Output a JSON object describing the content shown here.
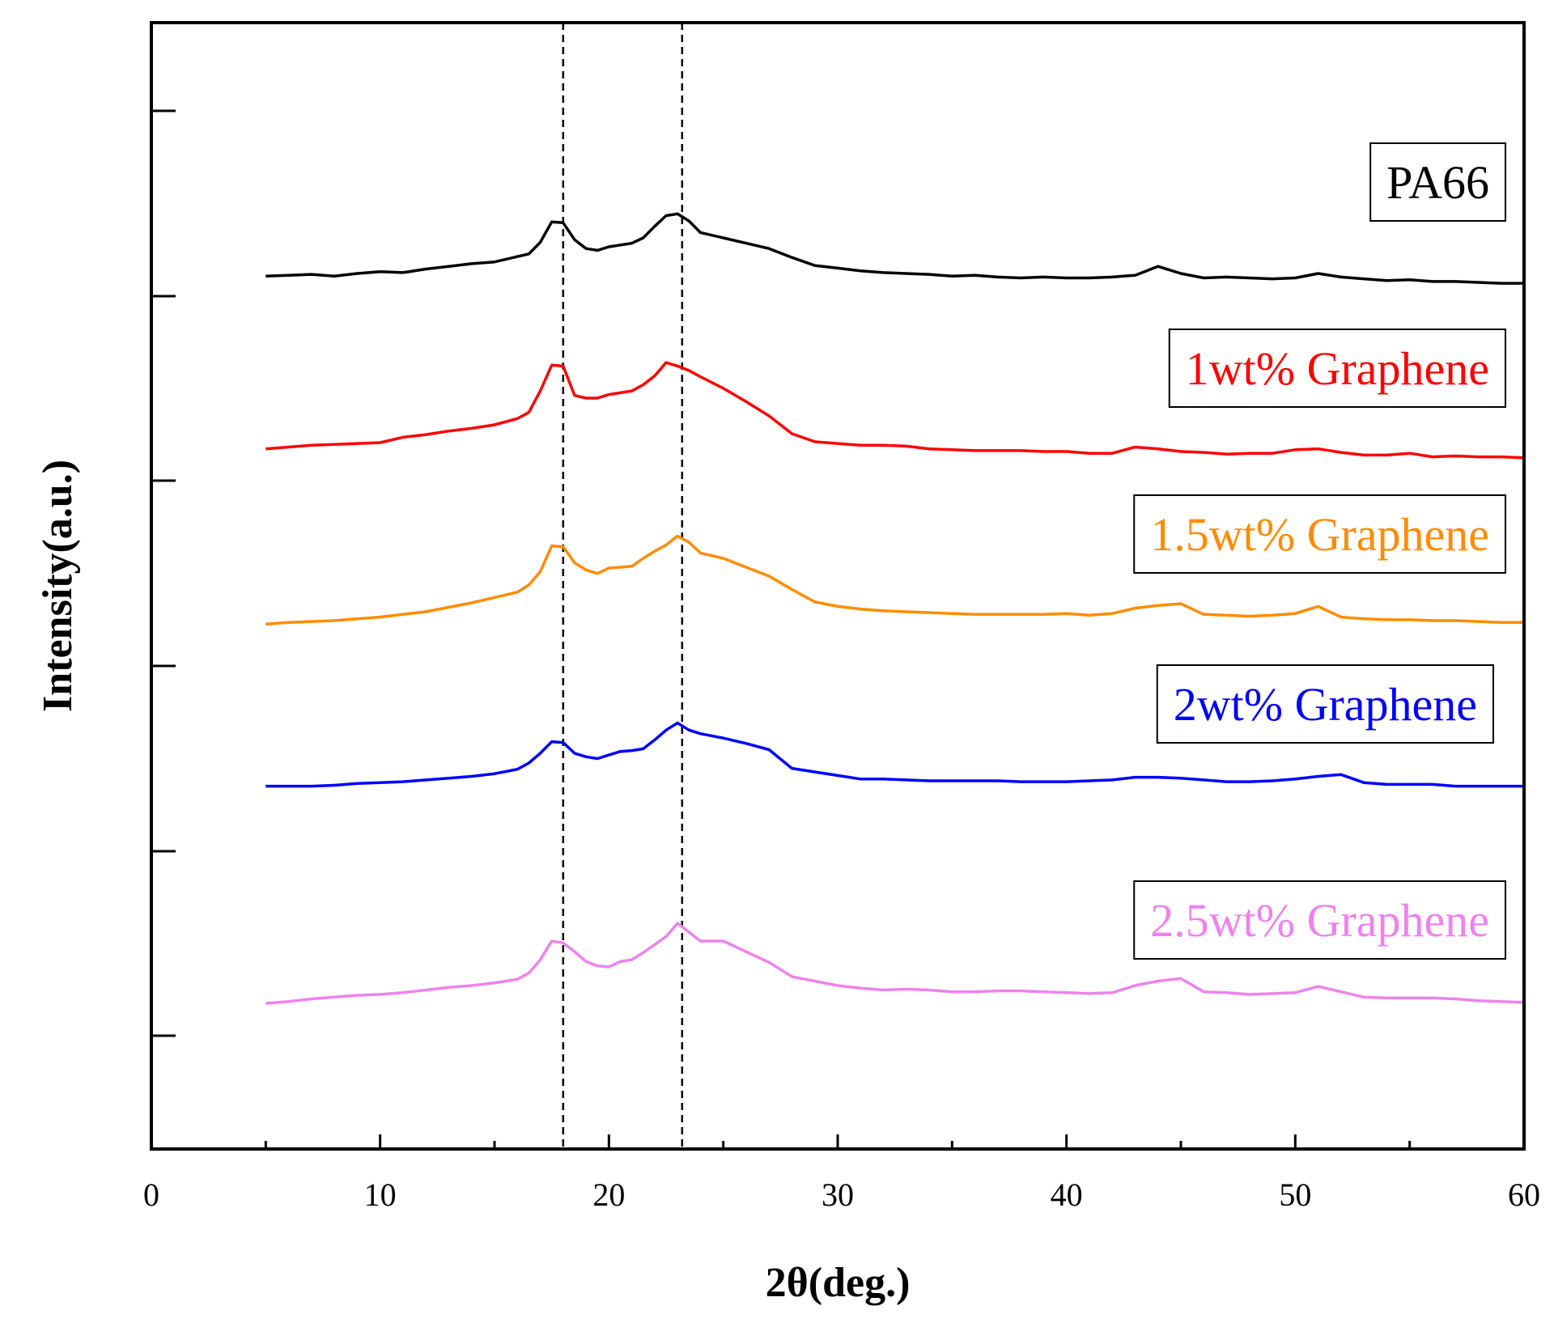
{
  "chart_data": {
    "type": "line",
    "title": "",
    "xlabel": "2θ(deg.)",
    "ylabel": "Intensity(a.u.)",
    "xlim": [
      0,
      60
    ],
    "ylim": [
      0,
      1
    ],
    "x_ticks": [
      0,
      10,
      20,
      30,
      40,
      50,
      60
    ],
    "y_tick_values": [
      0.1,
      0.3,
      0.5,
      0.7,
      0.9
    ],
    "y_tick_labels_shown": false,
    "reference_lines_x": [
      18,
      23.2
    ],
    "grid": false,
    "legend": "labels to the right of each curve, in boxes",
    "series": [
      {
        "name": "PA66",
        "color": "#000000",
        "x": [
          5,
          6,
          7,
          8,
          9,
          10,
          11,
          12,
          13,
          14,
          15,
          16,
          16.5,
          17,
          17.5,
          18,
          18.5,
          19,
          19.5,
          20,
          20.5,
          21,
          21.5,
          22,
          22.5,
          23,
          23.5,
          24,
          25,
          26,
          27,
          28,
          29,
          30,
          31,
          32,
          33,
          34,
          35,
          36,
          37,
          38,
          39,
          40,
          41,
          42,
          43,
          44,
          45,
          46,
          47,
          48,
          49,
          50,
          51,
          52,
          53,
          54,
          55,
          56,
          57,
          58,
          59,
          60
        ],
        "values": [
          0.817,
          0.818,
          0.819,
          0.817,
          0.82,
          0.822,
          0.821,
          0.825,
          0.828,
          0.831,
          0.833,
          0.839,
          0.842,
          0.855,
          0.878,
          0.877,
          0.858,
          0.848,
          0.846,
          0.85,
          0.852,
          0.854,
          0.86,
          0.873,
          0.885,
          0.887,
          0.879,
          0.866,
          0.86,
          0.854,
          0.848,
          0.838,
          0.829,
          0.826,
          0.823,
          0.821,
          0.82,
          0.819,
          0.817,
          0.818,
          0.816,
          0.815,
          0.816,
          0.815,
          0.815,
          0.816,
          0.818,
          0.828,
          0.82,
          0.815,
          0.816,
          0.815,
          0.814,
          0.815,
          0.82,
          0.816,
          0.814,
          0.812,
          0.813,
          0.811,
          0.811,
          0.81,
          0.809,
          0.809
        ]
      },
      {
        "name": "1wt% Graphene",
        "color": "#ff0000",
        "x": [
          5,
          6,
          7,
          8,
          9,
          10,
          11,
          12,
          13,
          14,
          15,
          16,
          16.5,
          17,
          17.5,
          18,
          18.5,
          19,
          19.5,
          20,
          20.5,
          21,
          21.5,
          22,
          22.5,
          23,
          23.5,
          24,
          25,
          26,
          27,
          28,
          29,
          30,
          31,
          32,
          33,
          34,
          35,
          36,
          37,
          38,
          39,
          40,
          41,
          42,
          43,
          44,
          45,
          46,
          47,
          48,
          49,
          50,
          51,
          52,
          53,
          54,
          55,
          56,
          57,
          58,
          59,
          60
        ],
        "values": [
          0.623,
          0.625,
          0.627,
          0.628,
          0.629,
          0.63,
          0.636,
          0.639,
          0.643,
          0.646,
          0.65,
          0.657,
          0.664,
          0.688,
          0.717,
          0.716,
          0.683,
          0.68,
          0.68,
          0.684,
          0.686,
          0.688,
          0.695,
          0.705,
          0.72,
          0.716,
          0.711,
          0.704,
          0.691,
          0.676,
          0.66,
          0.64,
          0.631,
          0.629,
          0.627,
          0.627,
          0.626,
          0.623,
          0.622,
          0.621,
          0.621,
          0.621,
          0.62,
          0.62,
          0.618,
          0.618,
          0.625,
          0.623,
          0.62,
          0.619,
          0.617,
          0.618,
          0.618,
          0.622,
          0.623,
          0.619,
          0.616,
          0.616,
          0.618,
          0.614,
          0.615,
          0.614,
          0.614,
          0.613
        ]
      },
      {
        "name": "1.5wt% Graphene",
        "color": "#ff8c00",
        "x": [
          5,
          6,
          7,
          8,
          9,
          10,
          11,
          12,
          13,
          14,
          15,
          16,
          16.5,
          17,
          17.5,
          18,
          18.5,
          19,
          19.5,
          20,
          20.5,
          21,
          21.5,
          22,
          22.5,
          23,
          23.5,
          24,
          25,
          26,
          27,
          28,
          29,
          30,
          31,
          32,
          33,
          34,
          35,
          36,
          37,
          38,
          39,
          40,
          41,
          42,
          43,
          44,
          45,
          46,
          47,
          48,
          49,
          50,
          51,
          52,
          53,
          54,
          55,
          56,
          57,
          58,
          59,
          60
        ],
        "values": [
          0.426,
          0.428,
          0.429,
          0.43,
          0.432,
          0.434,
          0.437,
          0.44,
          0.445,
          0.45,
          0.456,
          0.462,
          0.47,
          0.485,
          0.514,
          0.513,
          0.495,
          0.487,
          0.483,
          0.489,
          0.49,
          0.491,
          0.5,
          0.508,
          0.515,
          0.525,
          0.518,
          0.506,
          0.5,
          0.49,
          0.48,
          0.465,
          0.451,
          0.446,
          0.443,
          0.441,
          0.44,
          0.439,
          0.438,
          0.437,
          0.437,
          0.437,
          0.437,
          0.438,
          0.436,
          0.438,
          0.444,
          0.447,
          0.449,
          0.437,
          0.436,
          0.435,
          0.436,
          0.438,
          0.446,
          0.434,
          0.432,
          0.431,
          0.431,
          0.43,
          0.43,
          0.429,
          0.428,
          0.428
        ]
      },
      {
        "name": "2wt% Graphene",
        "color": "#0000ff",
        "x": [
          5,
          6,
          7,
          8,
          9,
          10,
          11,
          12,
          13,
          14,
          15,
          16,
          16.5,
          17,
          17.5,
          18,
          18.5,
          19,
          19.5,
          20,
          20.5,
          21,
          21.5,
          22,
          22.5,
          23,
          23.5,
          24,
          25,
          26,
          27,
          28,
          29,
          30,
          31,
          32,
          33,
          34,
          35,
          36,
          37,
          38,
          39,
          40,
          41,
          42,
          43,
          44,
          45,
          46,
          47,
          48,
          49,
          50,
          51,
          52,
          53,
          54,
          55,
          56,
          57,
          58,
          59,
          60
        ],
        "values": [
          0.244,
          0.244,
          0.244,
          0.245,
          0.247,
          0.248,
          0.249,
          0.251,
          0.253,
          0.255,
          0.258,
          0.263,
          0.27,
          0.281,
          0.294,
          0.293,
          0.281,
          0.277,
          0.275,
          0.279,
          0.283,
          0.284,
          0.286,
          0.296,
          0.307,
          0.315,
          0.307,
          0.303,
          0.298,
          0.292,
          0.285,
          0.264,
          0.26,
          0.256,
          0.252,
          0.252,
          0.251,
          0.25,
          0.25,
          0.25,
          0.25,
          0.249,
          0.249,
          0.249,
          0.25,
          0.251,
          0.254,
          0.254,
          0.253,
          0.251,
          0.249,
          0.249,
          0.25,
          0.252,
          0.255,
          0.257,
          0.248,
          0.246,
          0.246,
          0.246,
          0.244,
          0.244,
          0.244,
          0.244
        ]
      },
      {
        "name": "2.5wt% Graphene",
        "color": "#ee82ee",
        "x": [
          5,
          6,
          7,
          8,
          9,
          10,
          11,
          12,
          13,
          14,
          15,
          16,
          16.5,
          17,
          17.5,
          18,
          18.5,
          19,
          19.5,
          20,
          20.5,
          21,
          21.5,
          22,
          22.5,
          23,
          23.5,
          24,
          25,
          26,
          27,
          28,
          29,
          30,
          31,
          32,
          33,
          34,
          35,
          36,
          37,
          38,
          39,
          40,
          41,
          42,
          43,
          44,
          45,
          46,
          47,
          48,
          49,
          50,
          51,
          52,
          53,
          54,
          55,
          56,
          57,
          58,
          59,
          60
        ],
        "values": [
          0.0,
          0.002,
          0.005,
          0.007,
          0.009,
          0.01,
          0.012,
          0.015,
          0.018,
          0.02,
          0.023,
          0.027,
          0.034,
          0.049,
          0.07,
          0.068,
          0.058,
          0.047,
          0.042,
          0.041,
          0.047,
          0.049,
          0.057,
          0.066,
          0.075,
          0.09,
          0.08,
          0.07,
          0.07,
          0.058,
          0.046,
          0.03,
          0.025,
          0.02,
          0.017,
          0.015,
          0.016,
          0.015,
          0.013,
          0.013,
          0.014,
          0.014,
          0.013,
          0.012,
          0.011,
          0.012,
          0.02,
          0.025,
          0.028,
          0.013,
          0.012,
          0.01,
          0.011,
          0.012,
          0.019,
          0.013,
          0.007,
          0.006,
          0.006,
          0.006,
          0.005,
          0.003,
          0.002,
          0.001
        ]
      }
    ]
  }
}
